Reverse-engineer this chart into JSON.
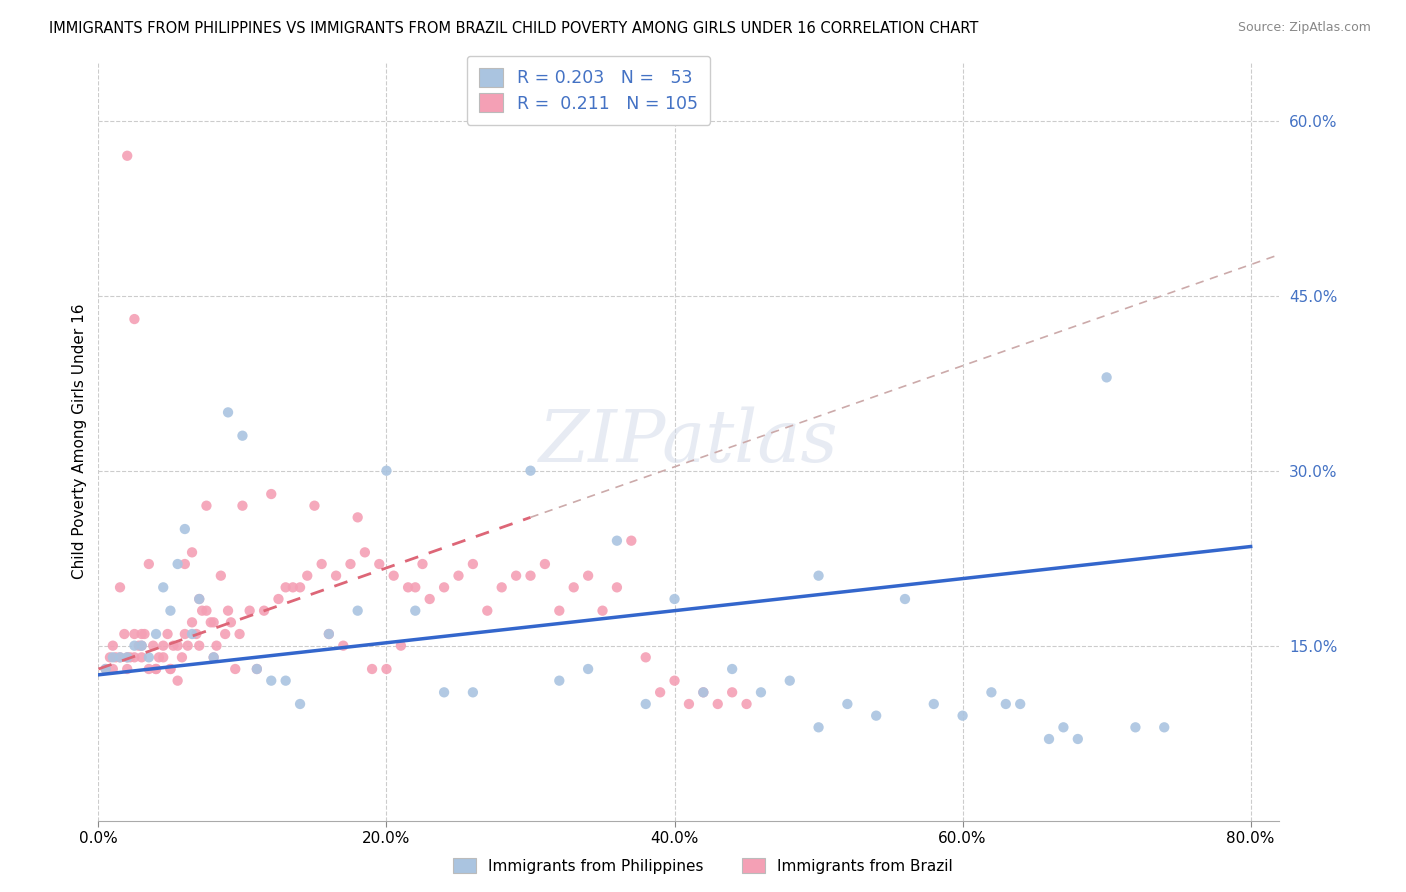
{
  "title": "IMMIGRANTS FROM PHILIPPINES VS IMMIGRANTS FROM BRAZIL CHILD POVERTY AMONG GIRLS UNDER 16 CORRELATION CHART",
  "source": "Source: ZipAtlas.com",
  "ylabel": "Child Poverty Among Girls Under 16",
  "xlim": [
    0.0,
    0.82
  ],
  "ylim": [
    0.0,
    0.65
  ],
  "xticks": [
    0.0,
    0.2,
    0.4,
    0.6,
    0.8
  ],
  "xtick_labels": [
    "0.0%",
    "20.0%",
    "40.0%",
    "60.0%",
    "80.0%"
  ],
  "yticks_right": [
    0.15,
    0.3,
    0.45,
    0.6
  ],
  "ytick_labels_right": [
    "15.0%",
    "30.0%",
    "45.0%",
    "60.0%"
  ],
  "r_val_philippines": "0.203",
  "n_val_philippines": "53",
  "r_val_brazil": "0.211",
  "n_val_brazil": "105",
  "color_philippines": "#aac4e0",
  "color_brazil": "#f4a0b5",
  "line_color_philippines": "#3366cc",
  "line_color_brazil": "#dd6677",
  "grid_color": "#cccccc",
  "scatter_size": 55,
  "ph_line_x0": 0.0,
  "ph_line_y0": 0.125,
  "ph_line_x1": 0.8,
  "ph_line_y1": 0.235,
  "br_line_x0": 0.0,
  "br_line_y0": 0.13,
  "br_line_x1": 0.3,
  "br_line_y1": 0.26,
  "philippines_x": [
    0.005,
    0.01,
    0.015,
    0.02,
    0.025,
    0.03,
    0.035,
    0.04,
    0.045,
    0.05,
    0.055,
    0.06,
    0.065,
    0.07,
    0.08,
    0.09,
    0.1,
    0.11,
    0.12,
    0.13,
    0.14,
    0.16,
    0.18,
    0.2,
    0.22,
    0.24,
    0.26,
    0.3,
    0.32,
    0.36,
    0.4,
    0.42,
    0.44,
    0.46,
    0.48,
    0.5,
    0.52,
    0.54,
    0.56,
    0.58,
    0.6,
    0.62,
    0.64,
    0.66,
    0.68,
    0.7,
    0.72,
    0.74,
    0.63,
    0.67,
    0.5,
    0.38,
    0.34
  ],
  "philippines_y": [
    0.13,
    0.14,
    0.14,
    0.14,
    0.15,
    0.15,
    0.14,
    0.16,
    0.2,
    0.18,
    0.22,
    0.25,
    0.16,
    0.19,
    0.14,
    0.35,
    0.33,
    0.13,
    0.12,
    0.12,
    0.1,
    0.16,
    0.18,
    0.3,
    0.18,
    0.11,
    0.11,
    0.3,
    0.12,
    0.24,
    0.19,
    0.11,
    0.13,
    0.11,
    0.12,
    0.21,
    0.1,
    0.09,
    0.19,
    0.1,
    0.09,
    0.11,
    0.1,
    0.07,
    0.07,
    0.38,
    0.08,
    0.08,
    0.1,
    0.08,
    0.08,
    0.1,
    0.13
  ],
  "brazil_x": [
    0.005,
    0.008,
    0.01,
    0.012,
    0.015,
    0.018,
    0.02,
    0.022,
    0.025,
    0.028,
    0.03,
    0.032,
    0.035,
    0.038,
    0.04,
    0.042,
    0.045,
    0.048,
    0.05,
    0.052,
    0.055,
    0.058,
    0.06,
    0.062,
    0.065,
    0.068,
    0.07,
    0.072,
    0.075,
    0.078,
    0.08,
    0.082,
    0.085,
    0.088,
    0.09,
    0.092,
    0.095,
    0.098,
    0.1,
    0.105,
    0.11,
    0.115,
    0.12,
    0.125,
    0.13,
    0.135,
    0.14,
    0.145,
    0.15,
    0.155,
    0.16,
    0.165,
    0.17,
    0.175,
    0.18,
    0.185,
    0.19,
    0.195,
    0.2,
    0.205,
    0.21,
    0.215,
    0.22,
    0.225,
    0.23,
    0.24,
    0.25,
    0.26,
    0.27,
    0.28,
    0.29,
    0.3,
    0.31,
    0.32,
    0.33,
    0.34,
    0.35,
    0.36,
    0.37,
    0.38,
    0.39,
    0.4,
    0.41,
    0.42,
    0.43,
    0.44,
    0.45,
    0.02,
    0.025,
    0.03,
    0.035,
    0.04,
    0.045,
    0.05,
    0.055,
    0.06,
    0.065,
    0.07,
    0.075,
    0.08,
    0.01,
    0.015,
    0.02,
    0.025,
    0.03
  ],
  "brazil_y": [
    0.13,
    0.14,
    0.15,
    0.14,
    0.2,
    0.16,
    0.57,
    0.14,
    0.43,
    0.15,
    0.15,
    0.16,
    0.22,
    0.15,
    0.13,
    0.14,
    0.14,
    0.16,
    0.13,
    0.15,
    0.12,
    0.14,
    0.22,
    0.15,
    0.23,
    0.16,
    0.19,
    0.18,
    0.27,
    0.17,
    0.14,
    0.15,
    0.21,
    0.16,
    0.18,
    0.17,
    0.13,
    0.16,
    0.27,
    0.18,
    0.13,
    0.18,
    0.28,
    0.19,
    0.2,
    0.2,
    0.2,
    0.21,
    0.27,
    0.22,
    0.16,
    0.21,
    0.15,
    0.22,
    0.26,
    0.23,
    0.13,
    0.22,
    0.13,
    0.21,
    0.15,
    0.2,
    0.2,
    0.22,
    0.19,
    0.2,
    0.21,
    0.22,
    0.18,
    0.2,
    0.21,
    0.21,
    0.22,
    0.18,
    0.2,
    0.21,
    0.18,
    0.2,
    0.24,
    0.14,
    0.11,
    0.12,
    0.1,
    0.11,
    0.1,
    0.11,
    0.1,
    0.13,
    0.14,
    0.14,
    0.13,
    0.13,
    0.15,
    0.13,
    0.15,
    0.16,
    0.17,
    0.15,
    0.18,
    0.17,
    0.13,
    0.14,
    0.14,
    0.16,
    0.16
  ]
}
